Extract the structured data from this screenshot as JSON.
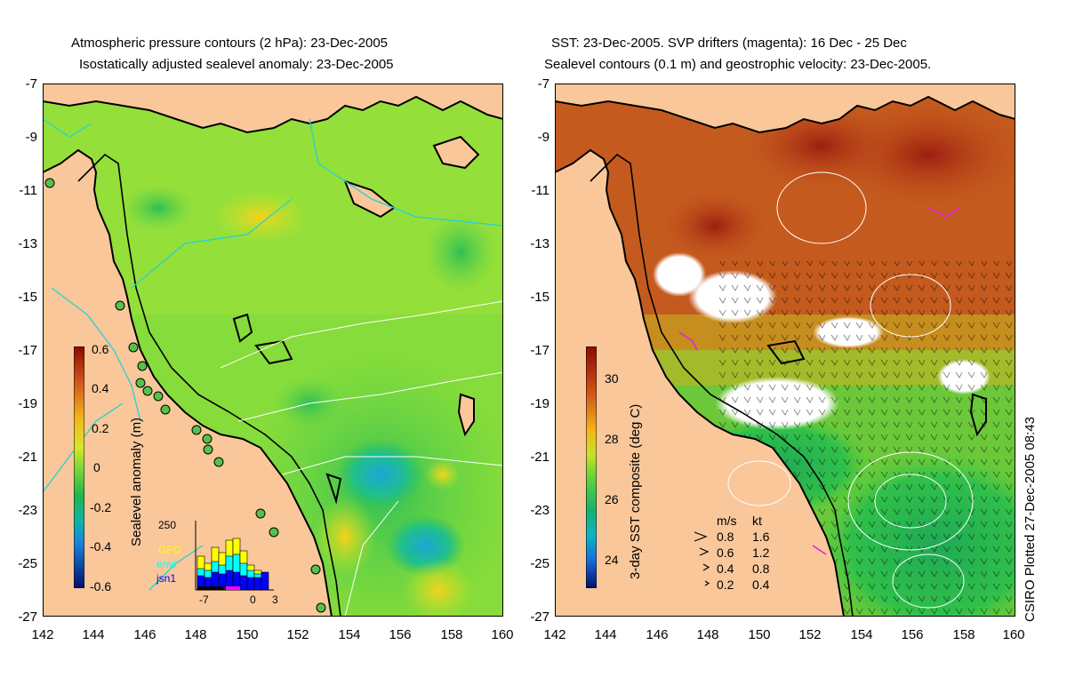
{
  "left_panel": {
    "title_line1": "Atmospheric pressure contours (2 hPa): 23-Dec-2005",
    "title_line2": "Isostatically adjusted sealevel anomaly: 23-Dec-2005",
    "y_ticks": [
      "-7",
      "-9",
      "-11",
      "-13",
      "-15",
      "-17",
      "-19",
      "-21",
      "-23",
      "-25",
      "-27"
    ],
    "x_ticks": [
      "142",
      "144",
      "146",
      "148",
      "150",
      "152",
      "154",
      "156",
      "158",
      "160"
    ],
    "colorbar": {
      "label": "Sealevel anomaly (m)",
      "ticks": [
        "0.6",
        "0.4",
        "0.2",
        "0",
        "-0.2",
        "-0.4",
        "-0.6"
      ],
      "range": [
        -0.6,
        0.6
      ]
    },
    "histogram": {
      "y_max_label": "250",
      "x_labels": [
        "-7",
        "0",
        "3"
      ],
      "series": [
        {
          "name": "GFO",
          "color": "#ffff00"
        },
        {
          "name": "envi",
          "color": "#00ffff"
        },
        {
          "name": "jsn1",
          "color": "#0000ff"
        }
      ]
    }
  },
  "right_panel": {
    "title_line1": "SST: 23-Dec-2005. SVP drifters (magenta): 16 Dec - 25 Dec",
    "title_line2": "Sealevel contours (0.1 m) and geostrophic velocity: 23-Dec-2005.",
    "y_ticks": [
      "-7",
      "-9",
      "-11",
      "-13",
      "-15",
      "-17",
      "-19",
      "-21",
      "-23",
      "-25",
      "-27"
    ],
    "x_ticks": [
      "142",
      "144",
      "146",
      "148",
      "150",
      "152",
      "154",
      "156",
      "158",
      "160"
    ],
    "colorbar": {
      "label": "3-day SST composite (deg C)",
      "ticks": [
        "30",
        "28",
        "26",
        "24"
      ],
      "range": [
        23,
        31
      ]
    },
    "velocity_legend": {
      "header_ms": "m/s",
      "header_kt": "kt",
      "rows": [
        {
          "ms": "0.8",
          "kt": "1.6"
        },
        {
          "ms": "0.6",
          "kt": "1.2"
        },
        {
          "ms": "0.4",
          "kt": "0.8"
        },
        {
          "ms": "0.2",
          "kt": "0.4"
        }
      ]
    }
  },
  "credit": "CSIRO Plotted 27-Dec-2005 08:43",
  "colors": {
    "land": "#f9c79a",
    "sla_mid": "#7fe03a",
    "sst_warm": "#c2501a",
    "coastline": "#000000",
    "pressure_contour": "#22d3d3"
  }
}
